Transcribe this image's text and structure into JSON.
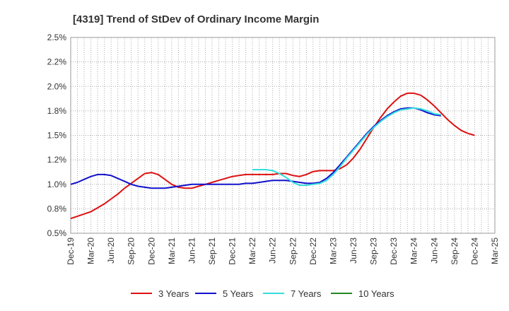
{
  "chart_data": {
    "type": "line",
    "title": "[4319]  Trend of StDev of Ordinary Income Margin",
    "xlabel": "",
    "ylabel": "",
    "x_ticks": [
      "Dec-19",
      "Mar-20",
      "Jun-20",
      "Sep-20",
      "Dec-20",
      "Mar-21",
      "Jun-21",
      "Sep-21",
      "Dec-21",
      "Mar-22",
      "Jun-22",
      "Sep-22",
      "Dec-22",
      "Mar-23",
      "Jun-23",
      "Sep-23",
      "Dec-23",
      "Mar-24",
      "Jun-24",
      "Sep-24",
      "Dec-24",
      "Mar-25"
    ],
    "y_ticks": [
      "0.5%",
      "0.8%",
      "1.0%",
      "1.2%",
      "1.5%",
      "1.8%",
      "2.0%",
      "2.2%",
      "2.5%"
    ],
    "ylim": [
      0.5,
      2.5
    ],
    "grid": "dotted",
    "legend_position": "bottom",
    "series": [
      {
        "name": "3 Years",
        "color": "#dd1111",
        "points": [
          [
            "Dec-19",
            0.65
          ],
          [
            "Mar-20",
            0.72
          ],
          [
            "Apr-20",
            0.76
          ],
          [
            "May-20",
            0.8
          ],
          [
            "Jun-20",
            0.85
          ],
          [
            "Jul-20",
            0.9
          ],
          [
            "Aug-20",
            0.96
          ],
          [
            "Sep-20",
            1.01
          ],
          [
            "Oct-20",
            1.06
          ],
          [
            "Nov-20",
            1.11
          ],
          [
            "Dec-20",
            1.12
          ],
          [
            "Jan-21",
            1.1
          ],
          [
            "Feb-21",
            1.05
          ],
          [
            "Mar-21",
            1.0
          ],
          [
            "Apr-21",
            0.97
          ],
          [
            "May-21",
            0.96
          ],
          [
            "Jun-21",
            0.96
          ],
          [
            "Jul-21",
            0.98
          ],
          [
            "Aug-21",
            1.0
          ],
          [
            "Sep-21",
            1.02
          ],
          [
            "Oct-21",
            1.04
          ],
          [
            "Nov-21",
            1.06
          ],
          [
            "Dec-21",
            1.08
          ],
          [
            "Jan-22",
            1.09
          ],
          [
            "Feb-22",
            1.1
          ],
          [
            "Mar-22",
            1.1
          ],
          [
            "Apr-22",
            1.1
          ],
          [
            "May-22",
            1.1
          ],
          [
            "Jun-22",
            1.1
          ],
          [
            "Jul-22",
            1.11
          ],
          [
            "Aug-22",
            1.11
          ],
          [
            "Sep-22",
            1.09
          ],
          [
            "Oct-22",
            1.08
          ],
          [
            "Nov-22",
            1.1
          ],
          [
            "Dec-22",
            1.13
          ],
          [
            "Jan-23",
            1.14
          ],
          [
            "Feb-23",
            1.14
          ],
          [
            "Mar-23",
            1.14
          ],
          [
            "Apr-23",
            1.16
          ],
          [
            "May-23",
            1.2
          ],
          [
            "Jun-23",
            1.27
          ],
          [
            "Jul-23",
            1.36
          ],
          [
            "Aug-23",
            1.47
          ],
          [
            "Sep-23",
            1.58
          ],
          [
            "Oct-23",
            1.68
          ],
          [
            "Nov-23",
            1.77
          ],
          [
            "Dec-23",
            1.84
          ],
          [
            "Jan-24",
            1.9
          ],
          [
            "Feb-24",
            1.93
          ],
          [
            "Mar-24",
            1.93
          ],
          [
            "Apr-24",
            1.91
          ],
          [
            "May-24",
            1.86
          ],
          [
            "Jun-24",
            1.8
          ],
          [
            "Jul-24",
            1.73
          ],
          [
            "Aug-24",
            1.66
          ],
          [
            "Sep-24",
            1.6
          ],
          [
            "Oct-24",
            1.55
          ],
          [
            "Nov-24",
            1.52
          ],
          [
            "Dec-24",
            1.5
          ]
        ]
      },
      {
        "name": "5 Years",
        "color": "#1111cc",
        "points": [
          [
            "Dec-19",
            1.0
          ],
          [
            "Jan-20",
            1.02
          ],
          [
            "Feb-20",
            1.05
          ],
          [
            "Mar-20",
            1.08
          ],
          [
            "Apr-20",
            1.1
          ],
          [
            "May-20",
            1.1
          ],
          [
            "Jun-20",
            1.09
          ],
          [
            "Jul-20",
            1.06
          ],
          [
            "Aug-20",
            1.03
          ],
          [
            "Sep-20",
            1.0
          ],
          [
            "Oct-20",
            0.98
          ],
          [
            "Nov-20",
            0.97
          ],
          [
            "Dec-20",
            0.96
          ],
          [
            "Jan-21",
            0.96
          ],
          [
            "Feb-21",
            0.96
          ],
          [
            "Mar-21",
            0.97
          ],
          [
            "Apr-21",
            0.98
          ],
          [
            "May-21",
            0.99
          ],
          [
            "Jun-21",
            1.0
          ],
          [
            "Jul-21",
            1.0
          ],
          [
            "Aug-21",
            1.0
          ],
          [
            "Sep-21",
            1.0
          ],
          [
            "Oct-21",
            1.0
          ],
          [
            "Nov-21",
            1.0
          ],
          [
            "Dec-21",
            1.0
          ],
          [
            "Jan-22",
            1.0
          ],
          [
            "Feb-22",
            1.01
          ],
          [
            "Mar-22",
            1.01
          ],
          [
            "Apr-22",
            1.02
          ],
          [
            "May-22",
            1.03
          ],
          [
            "Jun-22",
            1.04
          ],
          [
            "Jul-22",
            1.04
          ],
          [
            "Aug-22",
            1.04
          ],
          [
            "Sep-22",
            1.03
          ],
          [
            "Oct-22",
            1.02
          ],
          [
            "Nov-22",
            1.01
          ],
          [
            "Dec-22",
            1.01
          ],
          [
            "Jan-23",
            1.02
          ],
          [
            "Feb-23",
            1.06
          ],
          [
            "Mar-23",
            1.12
          ],
          [
            "Apr-23",
            1.2
          ],
          [
            "May-23",
            1.28
          ],
          [
            "Jun-23",
            1.36
          ],
          [
            "Jul-23",
            1.44
          ],
          [
            "Aug-23",
            1.52
          ],
          [
            "Sep-23",
            1.59
          ],
          [
            "Oct-23",
            1.65
          ],
          [
            "Nov-23",
            1.7
          ],
          [
            "Dec-23",
            1.74
          ],
          [
            "Jan-24",
            1.77
          ],
          [
            "Feb-24",
            1.78
          ],
          [
            "Mar-24",
            1.78
          ],
          [
            "Apr-24",
            1.76
          ],
          [
            "May-24",
            1.73
          ],
          [
            "Jun-24",
            1.71
          ],
          [
            "Jul-24",
            1.7
          ]
        ]
      },
      {
        "name": "7 Years",
        "color": "#33dddd",
        "points": [
          [
            "Mar-22",
            1.15
          ],
          [
            "Apr-22",
            1.15
          ],
          [
            "May-22",
            1.15
          ],
          [
            "Jun-22",
            1.14
          ],
          [
            "Jul-22",
            1.11
          ],
          [
            "Aug-22",
            1.07
          ],
          [
            "Sep-22",
            1.02
          ],
          [
            "Oct-22",
            0.99
          ],
          [
            "Nov-22",
            0.99
          ],
          [
            "Dec-22",
            1.0
          ],
          [
            "Jan-23",
            1.01
          ],
          [
            "Feb-23",
            1.04
          ],
          [
            "Mar-23",
            1.1
          ],
          [
            "Apr-23",
            1.18
          ],
          [
            "May-23",
            1.27
          ],
          [
            "Jun-23",
            1.35
          ],
          [
            "Jul-23",
            1.43
          ],
          [
            "Aug-23",
            1.51
          ],
          [
            "Sep-23",
            1.58
          ],
          [
            "Oct-23",
            1.64
          ],
          [
            "Nov-23",
            1.69
          ],
          [
            "Dec-23",
            1.73
          ],
          [
            "Jan-24",
            1.76
          ],
          [
            "Feb-24",
            1.77
          ],
          [
            "Mar-24",
            1.78
          ],
          [
            "Apr-24",
            1.77
          ],
          [
            "May-24",
            1.75
          ],
          [
            "Jun-24",
            1.72
          ],
          [
            "Jul-24",
            1.71
          ]
        ]
      },
      {
        "name": "10 Years",
        "color": "#228822",
        "points": []
      }
    ]
  }
}
